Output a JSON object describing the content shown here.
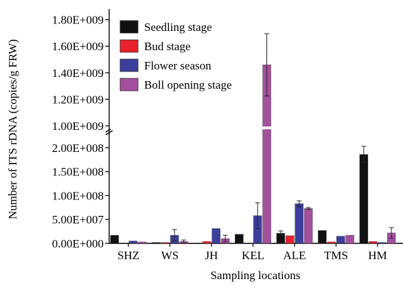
{
  "chart_data": {
    "type": "bar",
    "xlabel": "Sampling locations",
    "ylabel": "Number of ITS rDNA (copies/g FRW)",
    "y_axis_break": true,
    "ylim_lower": [
      0,
      220000000
    ],
    "ylim_upper": [
      1000000000,
      1850000000
    ],
    "yticks_lower": [
      "0.00E+000",
      "5.00E+007",
      "1.00E+008",
      "1.50E+008",
      "2.00E+008"
    ],
    "yticks_upper": [
      "1.00E+009",
      "1.20E+009",
      "1.40E+009",
      "1.60E+009",
      "1.80E+009"
    ],
    "categories": [
      "SHZ",
      "WS",
      "JH",
      "KEL",
      "ALE",
      "TMS",
      "HM"
    ],
    "legend_position": "top-left",
    "series": [
      {
        "name": "Seedling stage",
        "color": "#111111",
        "values": [
          17000000,
          2000000,
          0,
          19000000,
          21000000,
          27000000,
          186000000
        ],
        "errors": [
          0,
          0,
          0,
          0,
          5000000,
          0,
          17000000
        ]
      },
      {
        "name": "Bud stage",
        "color": "#e8222b",
        "values": [
          0,
          2000000,
          4000000,
          0,
          16000000,
          3000000,
          4000000
        ],
        "errors": [
          0,
          0,
          0,
          0,
          0,
          0,
          0
        ]
      },
      {
        "name": "Flower season",
        "color": "#3c3f9b",
        "values": [
          5000000,
          17000000,
          31000000,
          58000000,
          83000000,
          15000000,
          2000000
        ],
        "errors": [
          0,
          12000000,
          0,
          27000000,
          6000000,
          0,
          0
        ]
      },
      {
        "name": "Boll opening stage",
        "color": "#a4509e",
        "values": [
          3000000,
          4000000,
          10000000,
          1460000000,
          73000000,
          17000000,
          22000000
        ],
        "errors": [
          0,
          3000000,
          7000000,
          235000000,
          2000000,
          0,
          11000000
        ]
      }
    ]
  }
}
